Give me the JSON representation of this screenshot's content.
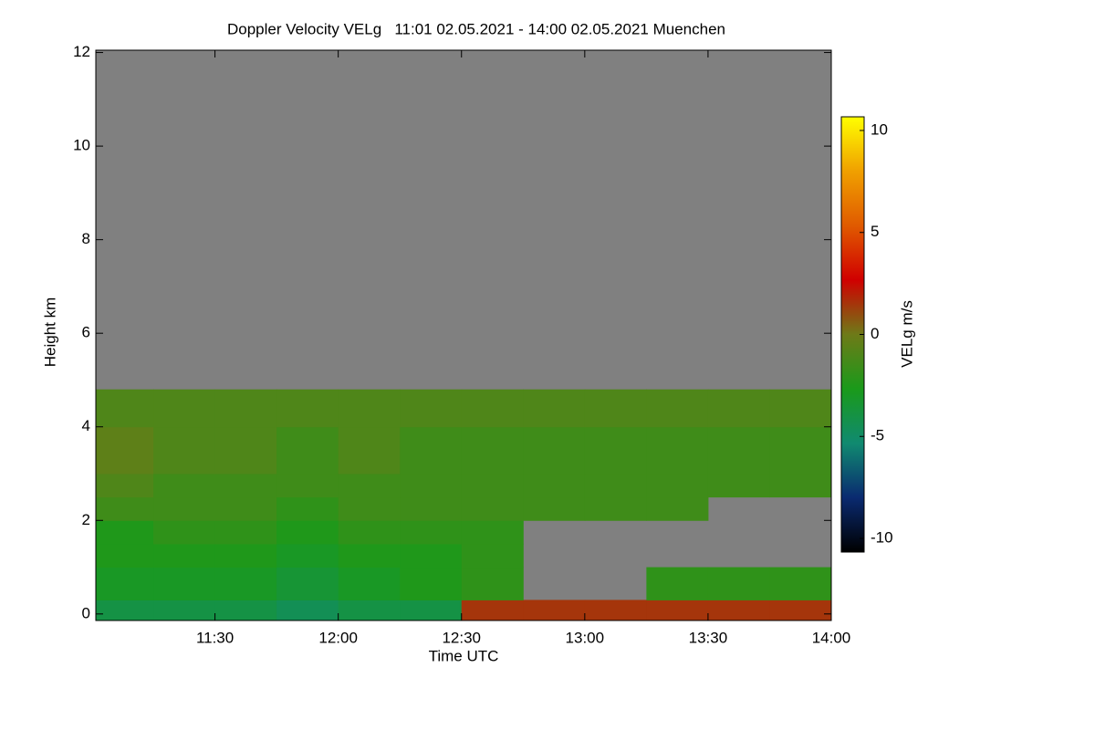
{
  "chart_data": {
    "type": "heatmap",
    "title": "Doppler Velocity VELg   11:01 02.05.2021 - 14:00 02.05.2021 Muenchen",
    "x_label": "Time UTC",
    "y_label": "Height km",
    "colorbar_label": "VELg m/s",
    "x_edges": [
      661,
      675,
      690,
      705,
      720,
      735,
      750,
      765,
      780,
      795,
      810,
      825,
      840
    ],
    "y_edges": [
      -0.14,
      0.3,
      1,
      1.5,
      2,
      2.5,
      3,
      4,
      4.8,
      12.05
    ],
    "values": [
      [
        -4,
        -4,
        -4,
        -4.5,
        -4,
        -4,
        1.5,
        1.5,
        1.5,
        1.5,
        1.5,
        1.5
      ],
      [
        -3,
        -3,
        -3,
        -3.5,
        -3,
        -2.5,
        -2,
        null,
        null,
        -2,
        -2,
        -2
      ],
      [
        -2.5,
        -2.5,
        -2.5,
        -3,
        -2.5,
        -2.5,
        -2,
        null,
        null,
        null,
        null,
        null
      ],
      [
        -2.5,
        -2,
        -2,
        -2.5,
        -2,
        -2,
        -2,
        null,
        null,
        null,
        null,
        null
      ],
      [
        -1.5,
        -1.5,
        -1.5,
        -2,
        -1.5,
        -1.5,
        -1.5,
        -1.5,
        -1.5,
        -1.5,
        null,
        null
      ],
      [
        -1,
        -1.5,
        -1.5,
        -1.5,
        -1.5,
        -1.5,
        -1.5,
        -1.5,
        -1.5,
        -1.5,
        -1.5,
        -1.5
      ],
      [
        -0.5,
        -1,
        -1,
        -1.5,
        -1,
        -1.5,
        -1.5,
        -1.5,
        -1.5,
        -1.5,
        -1.5,
        -1.5
      ],
      [
        -1,
        -1,
        -1,
        -1,
        -1,
        -1,
        -1,
        -1,
        -1,
        -1,
        -1,
        -1
      ],
      [
        null,
        null,
        null,
        null,
        null,
        null,
        null,
        null,
        null,
        null,
        null,
        null
      ]
    ],
    "xlim": [
      661,
      840
    ],
    "xticks": [
      {
        "value": 690,
        "label": "11:30"
      },
      {
        "value": 720,
        "label": "12:00"
      },
      {
        "value": 750,
        "label": "12:30"
      },
      {
        "value": 780,
        "label": "13:00"
      },
      {
        "value": 810,
        "label": "13:30"
      },
      {
        "value": 840,
        "label": "14:00"
      }
    ],
    "ylim": [
      -0.14,
      12.05
    ],
    "yticks": [
      0,
      2,
      4,
      6,
      8,
      10,
      12
    ],
    "clim": [
      -10.67,
      10.67
    ],
    "cticks": [
      -10,
      -5,
      0,
      5,
      10
    ],
    "colormap": [
      "#000000",
      "#0a2a70",
      "#108a70",
      "#1a9a1a",
      "#6e7a18",
      "#d00000",
      "#e05a00",
      "#f0a000",
      "#ffff00"
    ],
    "nodata_color": "#808080"
  }
}
